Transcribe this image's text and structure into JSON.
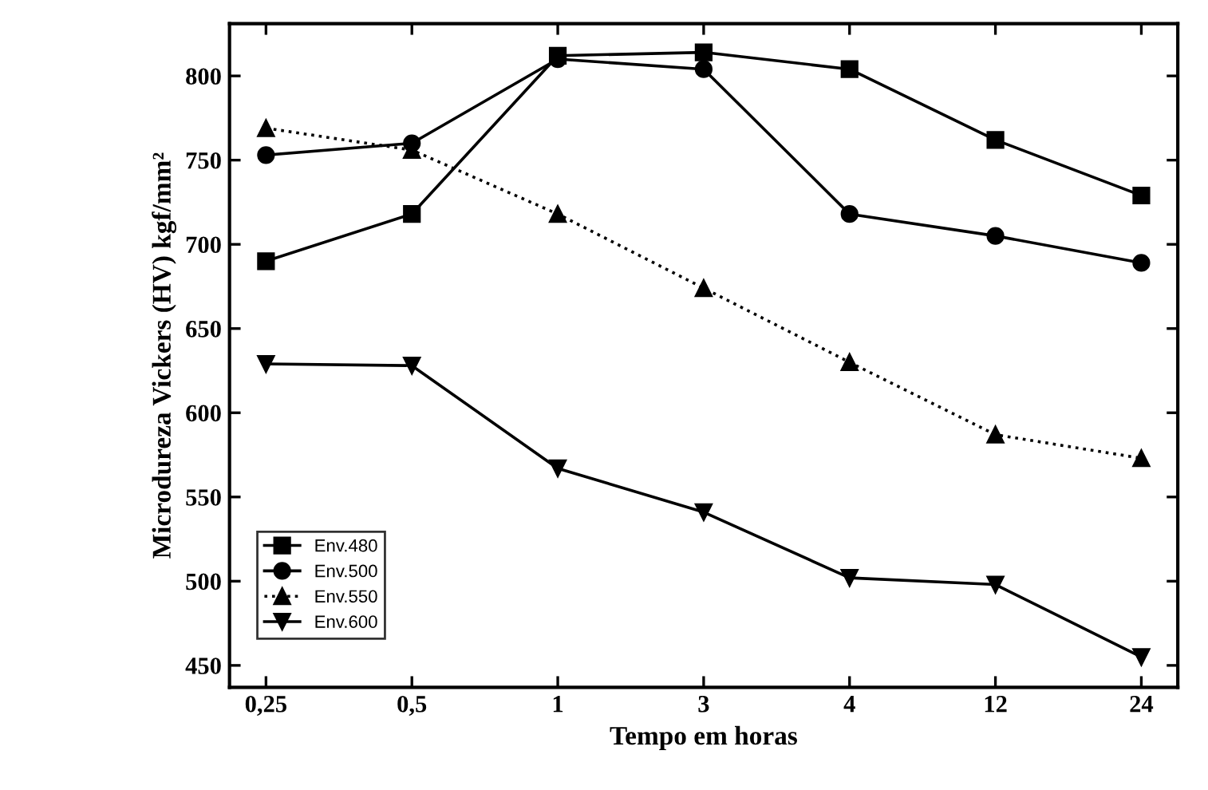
{
  "chart_data": {
    "type": "line",
    "xlabel": "Tempo em horas",
    "ylabel": "Microdureza Vickers (HV) kgf/mm²",
    "categories": [
      "0,25",
      "0,5",
      "1",
      "3",
      "4",
      "12",
      "24"
    ],
    "ylim": [
      437,
      831
    ],
    "yticks": [
      450,
      500,
      550,
      600,
      650,
      700,
      750,
      800
    ],
    "grid": false,
    "legend": "bottom left",
    "series": [
      {
        "name": "Env.480",
        "color": "#000000",
        "marker": "square",
        "line_style": "solid",
        "values": [
          690,
          718,
          812,
          814,
          804,
          762,
          729
        ]
      },
      {
        "name": "Env.500",
        "color": "#000000",
        "marker": "circle",
        "line_style": "solid",
        "values": [
          753,
          760,
          810,
          804,
          718,
          705,
          689
        ]
      },
      {
        "name": "Env.550",
        "color": "#000000",
        "marker": "triangle",
        "line_style": "dotted",
        "values": [
          769,
          756,
          718,
          674,
          630,
          587,
          573
        ]
      },
      {
        "name": "Env.600",
        "color": "#000000",
        "marker": "triangle_down",
        "line_style": "solid",
        "values": [
          629,
          628,
          567,
          541,
          502,
          498,
          455
        ]
      }
    ]
  }
}
